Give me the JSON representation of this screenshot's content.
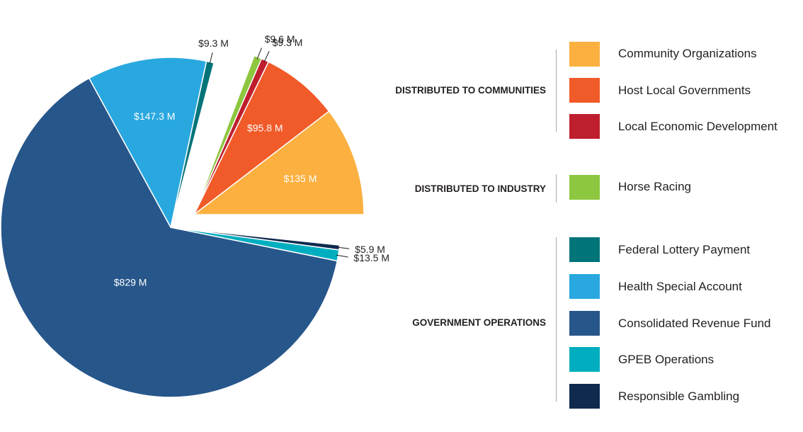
{
  "chart_data": {
    "type": "pie",
    "unit": "M",
    "slices": [
      {
        "name": "Community Organizations",
        "value": 135,
        "label": "$135 M",
        "color": "#fbb040",
        "group": "Distributed to Communities",
        "exploded": true,
        "label_inside": true
      },
      {
        "name": "Host Local Governments",
        "value": 95.8,
        "label": "$95.8 M",
        "color": "#f15a29",
        "group": "Distributed to Communities",
        "exploded": true,
        "label_inside": true
      },
      {
        "name": "Local Economic Development",
        "value": 9.3,
        "label": "$9.3 M",
        "color": "#be1e2d",
        "group": "Distributed to Communities",
        "exploded": true,
        "label_inside": false
      },
      {
        "name": "Horse Racing",
        "value": 9.6,
        "label": "$9.6 M",
        "color": "#8dc63f",
        "group": "Distributed to Industry",
        "exploded": true,
        "label_inside": false
      },
      {
        "name": "Federal Lottery Payment",
        "value": 9.3,
        "label": "$9.3 M",
        "color": "#007479",
        "group": "Government Operations",
        "exploded": false,
        "label_inside": false
      },
      {
        "name": "Health Special Account",
        "value": 147.3,
        "label": "$147.3 M",
        "color": "#29a8e0",
        "group": "Government Operations",
        "exploded": false,
        "label_inside": true
      },
      {
        "name": "Consolidated Revenue Fund",
        "value": 829,
        "label": "$829 M",
        "color": "#27568b",
        "group": "Government Operations",
        "exploded": false,
        "label_inside": true
      },
      {
        "name": "GPEB Operations",
        "value": 13.5,
        "label": "$13.5 M",
        "color": "#00aebf",
        "group": "Government Operations",
        "exploded": false,
        "label_inside": false
      },
      {
        "name": "Responsible Gambling",
        "value": 5.9,
        "label": "$5.9 M",
        "color": "#0f2a4f",
        "group": "Government Operations",
        "exploded": false,
        "label_inside": false
      }
    ],
    "legend": {
      "placement": "right",
      "groups": [
        {
          "title": "DISTRIBUTED TO COMMUNITIES",
          "entries": [
            "Community Organizations",
            "Host Local Governments",
            "Local Economic Development"
          ]
        },
        {
          "title": "DISTRIBUTED TO INDUSTRY",
          "entries": [
            "Horse Racing"
          ]
        },
        {
          "title": "GOVERNMENT OPERATIONS",
          "entries": [
            "Federal Lottery Payment",
            "Health Special Account",
            "Consolidated Revenue Fund",
            "GPEB Operations",
            "Responsible Gambling"
          ]
        }
      ]
    }
  }
}
